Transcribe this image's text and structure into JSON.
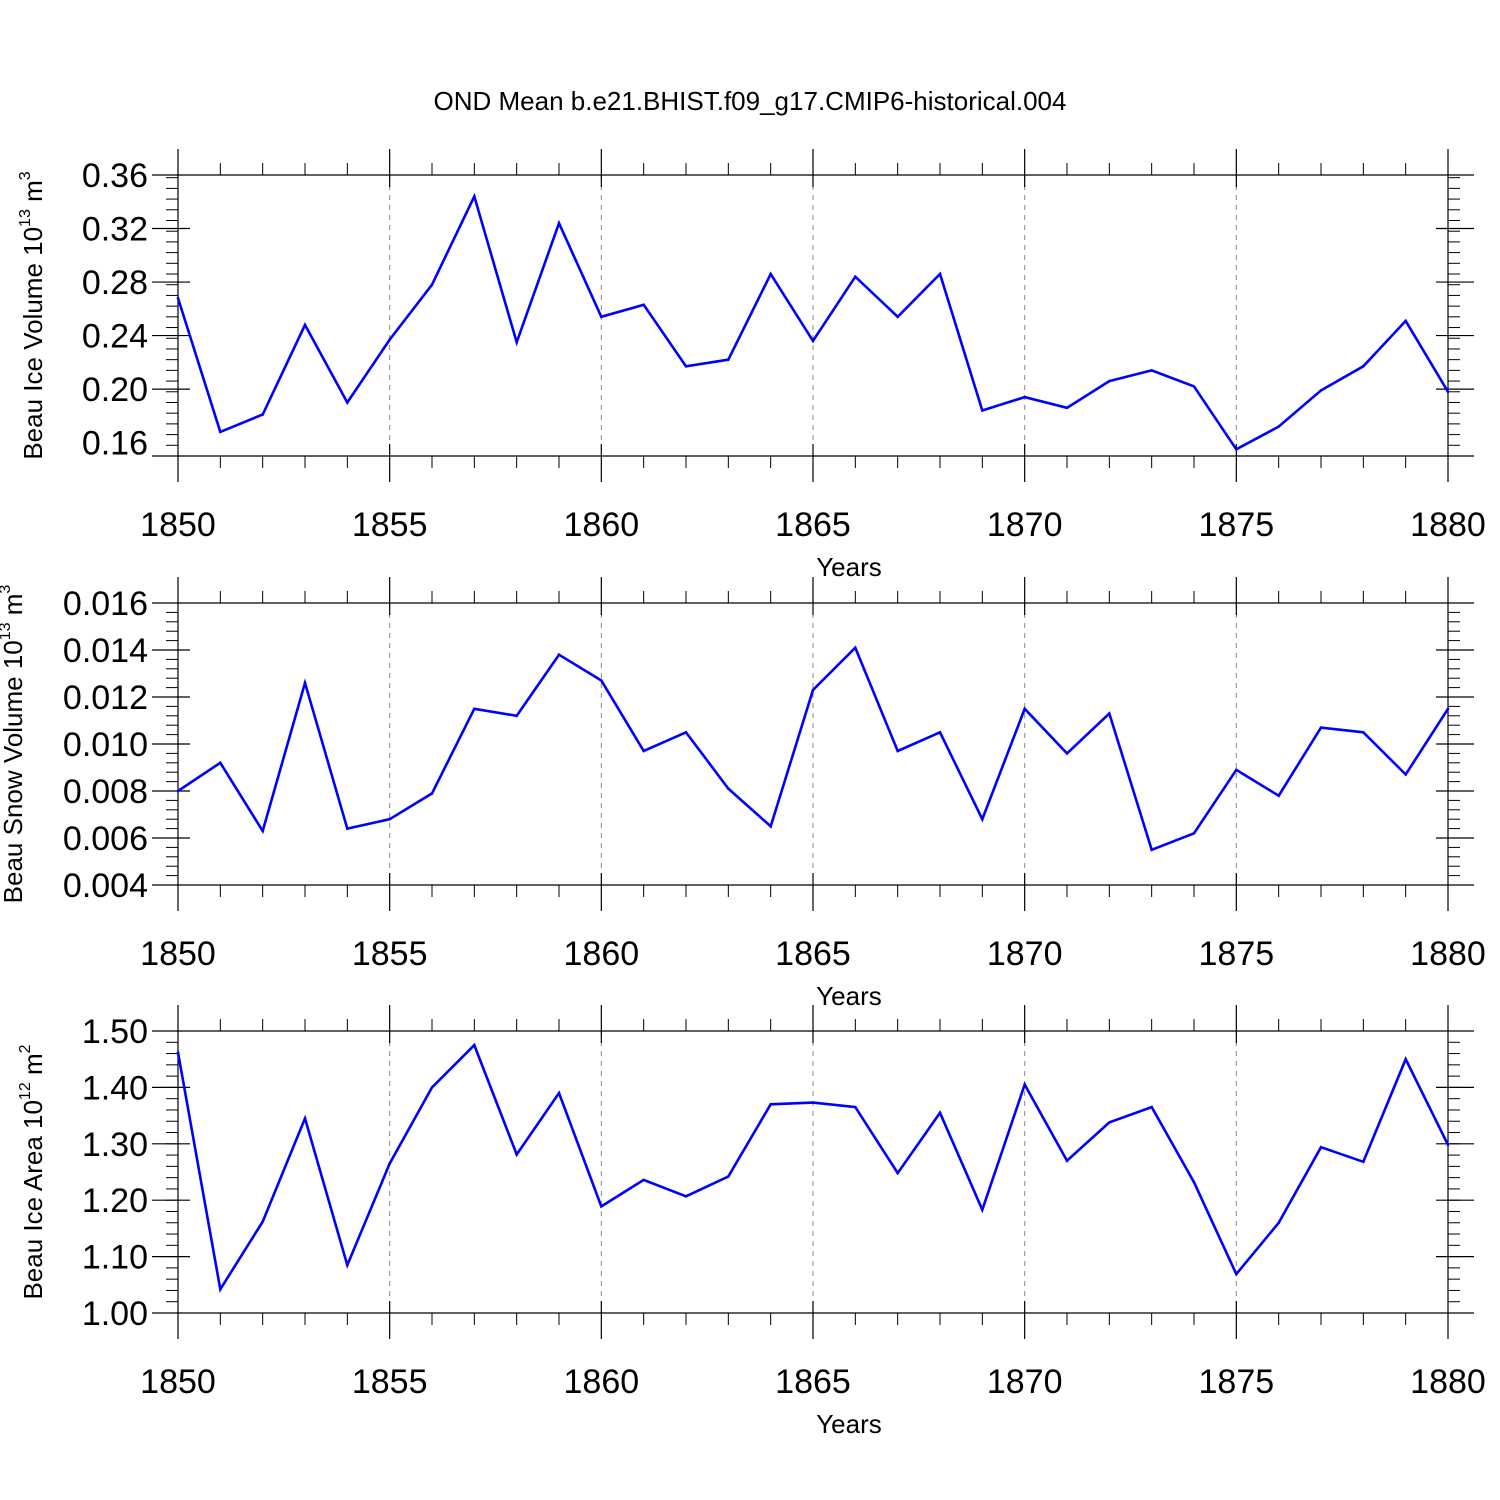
{
  "figure": {
    "title": "OND Mean b.e21.BHIST.f09_g17.CMIP6-historical.004",
    "line_color": "#0000ff",
    "grid_color": "#888888"
  },
  "chart_data": [
    {
      "type": "line",
      "xlabel": "Years",
      "ylabel": {
        "main": "Beau Ice Volume 10",
        "exp": "13",
        "unit": " m",
        "unit_exp": "3"
      },
      "xlim": [
        1850,
        1880
      ],
      "ylim": [
        0.15,
        0.36
      ],
      "x_ticks": [
        1850,
        1855,
        1860,
        1865,
        1870,
        1875,
        1880
      ],
      "y_ticks": [
        0.16,
        0.2,
        0.24,
        0.28,
        0.32,
        0.36
      ],
      "y_tick_labels": [
        "0.16",
        "0.20",
        "0.24",
        "0.28",
        "0.32",
        "0.36"
      ],
      "y_minor_step": 0.008,
      "x": [
        1850,
        1851,
        1852,
        1853,
        1854,
        1855,
        1856,
        1857,
        1858,
        1859,
        1860,
        1861,
        1862,
        1863,
        1864,
        1865,
        1866,
        1867,
        1868,
        1869,
        1870,
        1871,
        1872,
        1873,
        1874,
        1875,
        1876,
        1877,
        1878,
        1879,
        1880
      ],
      "values": [
        0.268,
        0.168,
        0.181,
        0.248,
        0.19,
        0.237,
        0.278,
        0.344,
        0.235,
        0.324,
        0.254,
        0.263,
        0.217,
        0.222,
        0.286,
        0.236,
        0.284,
        0.254,
        0.286,
        0.184,
        0.194,
        0.186,
        0.206,
        0.214,
        0.202,
        0.155,
        0.172,
        0.199,
        0.217,
        0.251,
        0.198
      ]
    },
    {
      "type": "line",
      "xlabel": "Years",
      "ylabel": {
        "main": "Beau Snow Volume 10",
        "exp": "13",
        "unit": " m",
        "unit_exp": "3"
      },
      "xlim": [
        1850,
        1880
      ],
      "ylim": [
        0.004,
        0.016
      ],
      "x_ticks": [
        1850,
        1855,
        1860,
        1865,
        1870,
        1875,
        1880
      ],
      "y_ticks": [
        0.004,
        0.006,
        0.008,
        0.01,
        0.012,
        0.014,
        0.016
      ],
      "y_tick_labels": [
        "0.004",
        "0.006",
        "0.008",
        "0.010",
        "0.012",
        "0.014",
        "0.016"
      ],
      "y_minor_step": 0.0004,
      "x": [
        1850,
        1851,
        1852,
        1853,
        1854,
        1855,
        1856,
        1857,
        1858,
        1859,
        1860,
        1861,
        1862,
        1863,
        1864,
        1865,
        1866,
        1867,
        1868,
        1869,
        1870,
        1871,
        1872,
        1873,
        1874,
        1875,
        1876,
        1877,
        1878,
        1879,
        1880
      ],
      "values": [
        0.008,
        0.0092,
        0.0063,
        0.0126,
        0.0064,
        0.0068,
        0.0079,
        0.0115,
        0.0112,
        0.0138,
        0.0127,
        0.0097,
        0.0105,
        0.0081,
        0.0065,
        0.0123,
        0.0141,
        0.0097,
        0.0105,
        0.0068,
        0.0115,
        0.0096,
        0.0113,
        0.0055,
        0.0062,
        0.0089,
        0.0078,
        0.0107,
        0.0105,
        0.0087,
        0.0115
      ]
    },
    {
      "type": "line",
      "xlabel": "Years",
      "ylabel": {
        "main": "Beau Ice Area 10",
        "exp": "12",
        "unit": " m",
        "unit_exp": "2"
      },
      "xlim": [
        1850,
        1880
      ],
      "ylim": [
        1.0,
        1.5
      ],
      "x_ticks": [
        1850,
        1855,
        1860,
        1865,
        1870,
        1875,
        1880
      ],
      "y_ticks": [
        1.0,
        1.1,
        1.2,
        1.3,
        1.4,
        1.5
      ],
      "y_tick_labels": [
        "1.00",
        "1.10",
        "1.20",
        "1.30",
        "1.40",
        "1.50"
      ],
      "y_minor_step": 0.02,
      "x": [
        1850,
        1851,
        1852,
        1853,
        1854,
        1855,
        1856,
        1857,
        1858,
        1859,
        1860,
        1861,
        1862,
        1863,
        1864,
        1865,
        1866,
        1867,
        1868,
        1869,
        1870,
        1871,
        1872,
        1873,
        1874,
        1875,
        1876,
        1877,
        1878,
        1879,
        1880
      ],
      "values": [
        1.462,
        1.042,
        1.162,
        1.345,
        1.085,
        1.265,
        1.4,
        1.475,
        1.281,
        1.39,
        1.189,
        1.236,
        1.207,
        1.242,
        1.37,
        1.373,
        1.365,
        1.248,
        1.355,
        1.183,
        1.405,
        1.27,
        1.338,
        1.365,
        1.232,
        1.069,
        1.16,
        1.294,
        1.268,
        1.45,
        1.298
      ]
    }
  ]
}
